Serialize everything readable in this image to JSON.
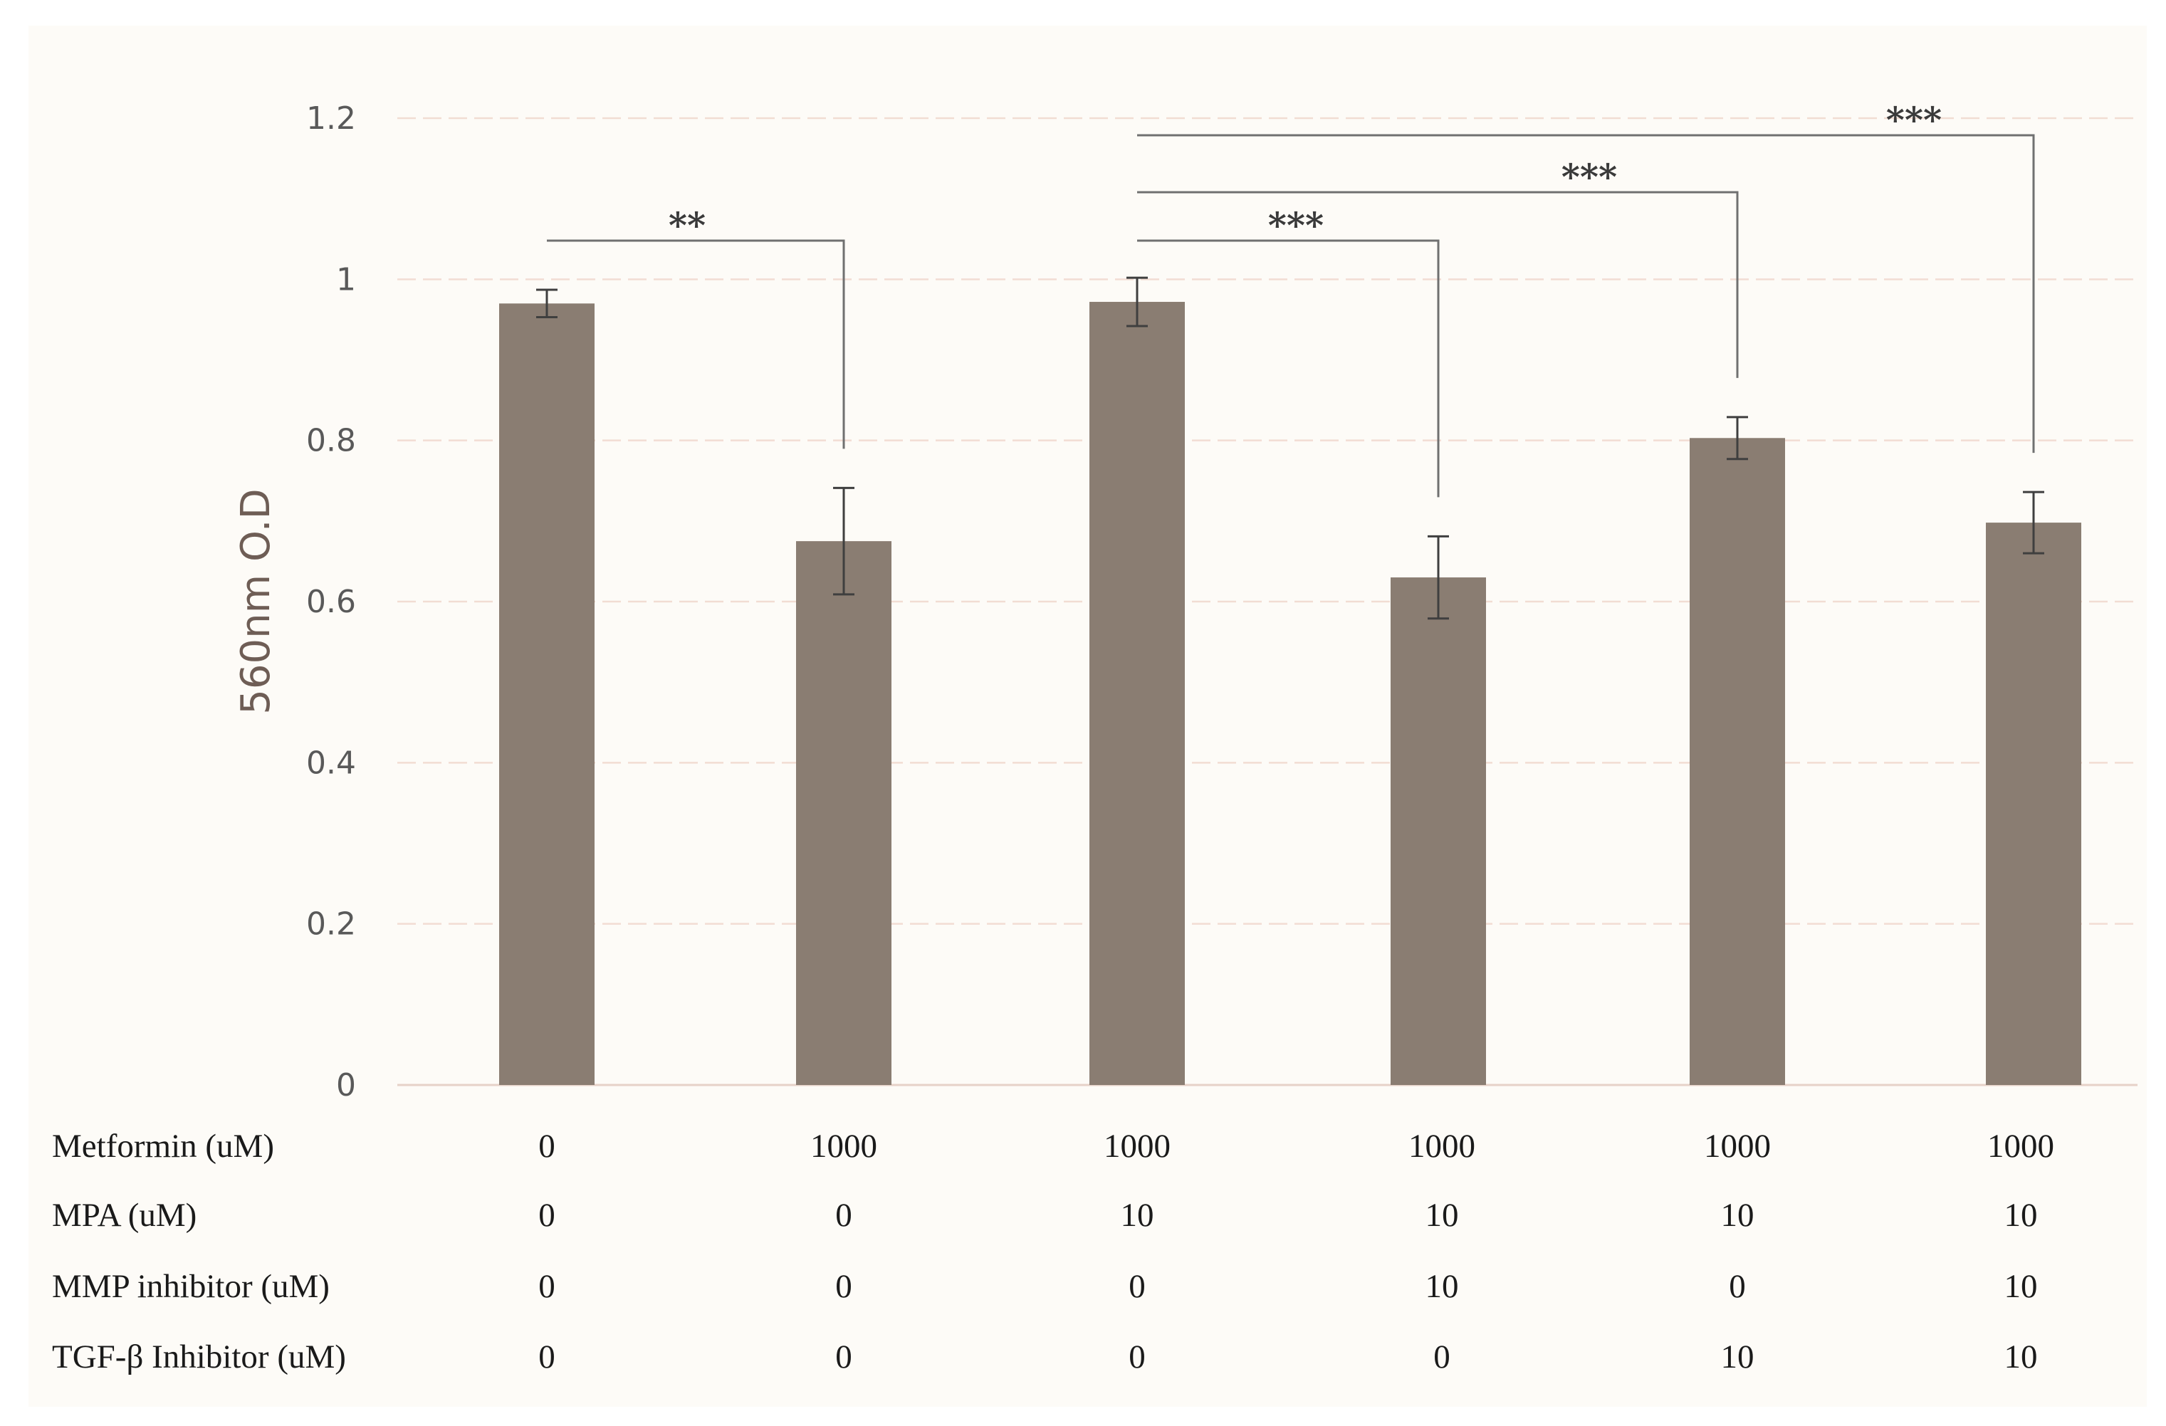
{
  "chart_data": {
    "type": "bar",
    "title": "",
    "xlabel": "",
    "ylabel": "560nm O.D",
    "ylim": [
      0,
      1.2
    ],
    "yticks": [
      "0",
      "0.2",
      "0.4",
      "0.6",
      "0.8",
      "1",
      "1.2"
    ],
    "grid": true,
    "bar_color": "#8a7d72",
    "grid_color": "#f2ddd3",
    "values": [
      0.97,
      0.675,
      0.972,
      0.63,
      0.803,
      0.698
    ],
    "errors": [
      0.017,
      0.066,
      0.03,
      0.051,
      0.026,
      0.038
    ],
    "conditions": [
      {
        "label": "Metformin (uM)",
        "values": [
          "0",
          "1000",
          "1000",
          "1000",
          "1000",
          "1000"
        ]
      },
      {
        "label": "MPA (uM)",
        "values": [
          "0",
          "0",
          "10",
          "10",
          "10",
          "10"
        ]
      },
      {
        "label": "MMP inhibitor (uM)",
        "values": [
          "0",
          "0",
          "0",
          "10",
          "0",
          "10"
        ]
      },
      {
        "label": "TGF-β Inhibitor (uM)",
        "values": [
          "0",
          "0",
          "0",
          "0",
          "10",
          "10"
        ]
      }
    ],
    "significance": [
      {
        "from": 0,
        "to": 1,
        "label": "**"
      },
      {
        "from": 2,
        "to": 3,
        "label": "***"
      },
      {
        "from": 2,
        "to": 4,
        "label": "***"
      },
      {
        "from": 2,
        "to": 5,
        "label": "***"
      }
    ]
  }
}
